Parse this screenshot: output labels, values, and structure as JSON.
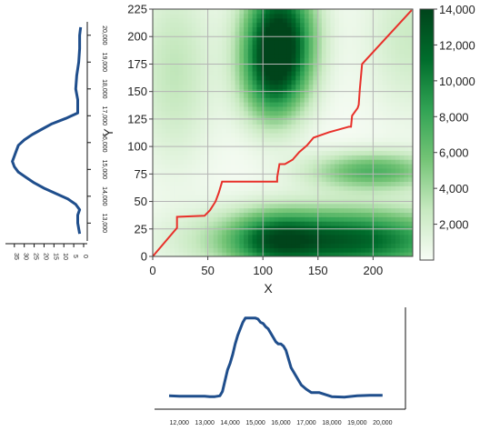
{
  "chart_data": [
    {
      "type": "heatmap",
      "xlabel": "X",
      "ylabel": "Y",
      "xlim": [
        0,
        236
      ],
      "ylim": [
        0,
        225
      ],
      "xticks": [
        "0",
        "50",
        "100",
        "150",
        "200"
      ],
      "yticks": [
        "0",
        "25",
        "50",
        "75",
        "100",
        "125",
        "150",
        "175",
        "200",
        "225"
      ],
      "grid": true,
      "colorbar": {
        "range": [
          0,
          14000
        ],
        "ticks": [
          "2,000",
          "4,000",
          "6,000",
          "8,000",
          "10,000",
          "12,000",
          "14,000"
        ],
        "colors": [
          "#f7fcf5",
          "#c7e9c0",
          "#74c476",
          "#31a354",
          "#006d2c",
          "#00441b"
        ]
      },
      "blobs": [
        {
          "x": 115,
          "y": 200,
          "sx": 22,
          "sy": 38,
          "w": 14000
        },
        {
          "x": 108,
          "y": 160,
          "sx": 20,
          "sy": 30,
          "w": 6000
        },
        {
          "x": 170,
          "y": 15,
          "sx": 75,
          "sy": 20,
          "w": 12500
        },
        {
          "x": 110,
          "y": 15,
          "sx": 25,
          "sy": 18,
          "w": 5000
        },
        {
          "x": 200,
          "y": 78,
          "sx": 40,
          "sy": 12,
          "w": 7000
        },
        {
          "x": 20,
          "y": 170,
          "sx": 25,
          "sy": 60,
          "w": 3000
        },
        {
          "x": 235,
          "y": 200,
          "sx": 30,
          "sy": 50,
          "w": 2500
        }
      ],
      "series": [
        {
          "x": [
            0,
            22,
            22,
            47,
            52,
            57,
            60,
            63,
            113,
            113,
            115,
            120,
            127,
            133,
            140,
            146,
            160,
            178,
            180,
            181,
            186,
            187,
            188,
            190,
            235
          ],
          "y": [
            0,
            26,
            36,
            37,
            42,
            50,
            58,
            68,
            68,
            72,
            84,
            84,
            88,
            95,
            101,
            108,
            113,
            118,
            118,
            128,
            135,
            138,
            152,
            175,
            224
          ],
          "color": "#e8302a"
        }
      ]
    },
    {
      "type": "line",
      "orientation": "horizontal",
      "xticks": [
        "12,000",
        "13,000",
        "14,000",
        "15,000",
        "16,000",
        "17,000",
        "18,000",
        "19,000",
        "20,000"
      ],
      "xlim": [
        11600,
        20400
      ],
      "ylim": [
        0,
        40
      ],
      "color": "#1f4e8c",
      "x": [
        11600,
        12000,
        12500,
        13000,
        13200,
        13400,
        13600,
        13700,
        13800,
        13900,
        14000,
        14100,
        14200,
        14300,
        14400,
        14500,
        14600,
        14700,
        14800,
        14900,
        15000,
        15100,
        15200,
        15300,
        15400,
        15500,
        15600,
        15700,
        15800,
        15900,
        16000,
        16100,
        16200,
        16300,
        16400,
        16500,
        16600,
        16700,
        16800,
        17000,
        17200,
        17500,
        18000,
        18500,
        19000,
        19500,
        20000
      ],
      "y": [
        2,
        1.8,
        1.8,
        1.8,
        1.6,
        1.6,
        2,
        4,
        9,
        14,
        17,
        21,
        26,
        30,
        33,
        36,
        38,
        38,
        38,
        38,
        38,
        37.5,
        36,
        35.5,
        34,
        33,
        31,
        29,
        27,
        26,
        26,
        25,
        23,
        19,
        15,
        13,
        11,
        9,
        7,
        5,
        3.5,
        3.5,
        1.6,
        1.4,
        2,
        2.2,
        2.2
      ]
    },
    {
      "type": "line",
      "orientation": "vertical",
      "yticks": [
        "13,000",
        "14,000",
        "15,000",
        "16,000",
        "17,000",
        "18,000",
        "19,000",
        "20,000"
      ],
      "xticks": [
        "35",
        "30",
        "25",
        "20",
        "15",
        "10",
        "5",
        "0"
      ],
      "ylim": [
        12300,
        20500
      ],
      "xlim": [
        0,
        39.5
      ],
      "color": "#1f4e8c",
      "y": [
        12600,
        13000,
        13300,
        13500,
        13700,
        13900,
        14100,
        14300,
        14500,
        14700,
        14900,
        15100,
        15300,
        15500,
        15700,
        15900,
        16100,
        16300,
        16500,
        16700,
        16900,
        17000,
        17100,
        17300,
        17600,
        18000,
        18500,
        19000,
        19500,
        20000,
        20300
      ],
      "x": [
        2,
        3,
        3,
        2,
        4,
        8,
        14,
        20,
        25,
        29,
        33,
        35,
        36,
        35,
        34,
        33,
        30,
        26,
        21,
        16,
        9,
        6,
        3,
        3,
        3,
        4,
        3.5,
        2.5,
        2,
        2,
        1.5
      ]
    }
  ]
}
